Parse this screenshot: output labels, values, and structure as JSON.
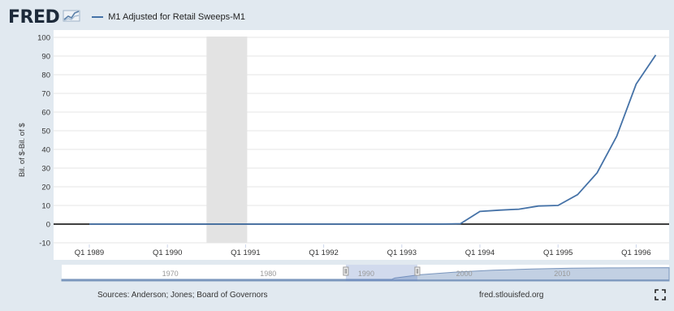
{
  "header": {
    "logo_text": "FRED",
    "logo_icon": "chart-line-icon"
  },
  "chart_data": {
    "type": "line",
    "title": "",
    "xlabel": "",
    "ylabel": "Bil. of $-Bil. of $",
    "ylim": [
      -10,
      100
    ],
    "yticks": [
      -10,
      0,
      10,
      20,
      30,
      40,
      50,
      60,
      70,
      80,
      90,
      100
    ],
    "xticks": [
      "Q1 1989",
      "Q1 1990",
      "Q1 1991",
      "Q1 1992",
      "Q1 1993",
      "Q1 1994",
      "Q1 1995",
      "Q1 1996"
    ],
    "grid": true,
    "legend_position": "top-left",
    "recession_shading": {
      "start": "Q3 1990",
      "end": "Q1 1991"
    },
    "series": [
      {
        "name": "M1 Adjusted for Retail Sweeps-M1",
        "color": "#4572a7",
        "x": [
          "Q1 1989",
          "Q2 1989",
          "Q3 1989",
          "Q4 1989",
          "Q1 1990",
          "Q2 1990",
          "Q3 1990",
          "Q4 1990",
          "Q1 1991",
          "Q2 1991",
          "Q3 1991",
          "Q4 1991",
          "Q1 1992",
          "Q2 1992",
          "Q3 1992",
          "Q4 1992",
          "Q1 1993",
          "Q2 1993",
          "Q3 1993",
          "Q4 1993",
          "Q1 1994",
          "Q2 1994",
          "Q3 1994",
          "Q4 1994",
          "Q1 1995",
          "Q2 1995",
          "Q3 1995",
          "Q4 1995",
          "Q1 1996",
          "Q2 1996"
        ],
        "values": [
          0,
          0,
          0,
          0,
          0,
          0,
          0,
          0,
          0,
          0,
          0,
          0,
          0,
          0,
          0,
          0,
          0,
          0,
          0,
          0.2,
          6.8,
          7.5,
          8.0,
          9.7,
          10.0,
          15.8,
          27.5,
          47.0,
          75.0,
          90.5
        ]
      }
    ]
  },
  "navigator": {
    "labels": [
      "1970",
      "1980",
      "1990",
      "2000",
      "2010"
    ]
  },
  "footer": {
    "sources": "Sources: Anderson; Jones; Board of Governors",
    "site": "fred.stlouisfed.org",
    "expand_icon": "expand-icon"
  }
}
